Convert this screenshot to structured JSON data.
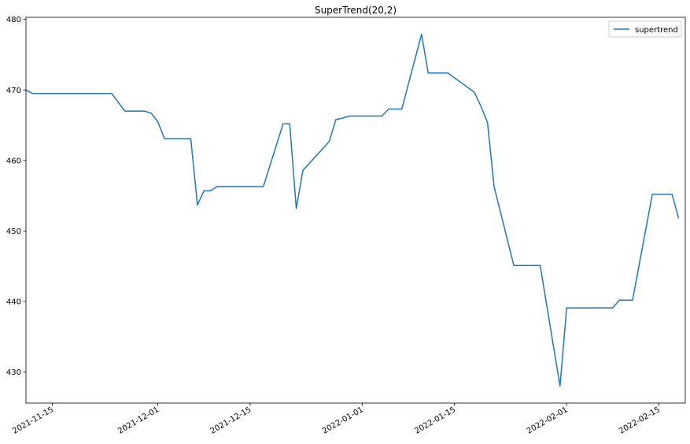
{
  "chart_data": {
    "type": "line",
    "title": "SuperTrend(20,2)",
    "xlabel": "",
    "ylabel": "",
    "x_ticks": [
      "2021-11-15",
      "2021-12-01",
      "2021-12-15",
      "2022-01-01",
      "2022-01-15",
      "2022-02-01",
      "2022-02-15"
    ],
    "y_ticks": [
      430,
      440,
      450,
      460,
      470,
      480
    ],
    "xlim": [
      "2021-11-11",
      "2022-02-19"
    ],
    "ylim": [
      425.6,
      480.3
    ],
    "grid": false,
    "legend": "top-right",
    "series": [
      {
        "name": "supertrend",
        "color": "#1f77b4",
        "x": [
          "2021-11-11",
          "2021-11-12",
          "2021-11-15",
          "2021-11-16",
          "2021-11-17",
          "2021-11-18",
          "2021-11-19",
          "2021-11-22",
          "2021-11-23",
          "2021-11-24",
          "2021-11-26",
          "2021-11-29",
          "2021-11-30",
          "2021-12-01",
          "2021-12-02",
          "2021-12-03",
          "2021-12-06",
          "2021-12-07",
          "2021-12-08",
          "2021-12-09",
          "2021-12-10",
          "2021-12-13",
          "2021-12-14",
          "2021-12-15",
          "2021-12-16",
          "2021-12-17",
          "2021-12-20",
          "2021-12-21",
          "2021-12-22",
          "2021-12-23",
          "2021-12-27",
          "2021-12-28",
          "2021-12-29",
          "2021-12-30",
          "2021-12-31",
          "2022-01-03",
          "2022-01-04",
          "2022-01-05",
          "2022-01-06",
          "2022-01-07",
          "2022-01-10",
          "2022-01-11",
          "2022-01-12",
          "2022-01-13",
          "2022-01-14",
          "2022-01-18",
          "2022-01-19",
          "2022-01-20",
          "2022-01-21",
          "2022-01-24",
          "2022-01-25",
          "2022-01-26",
          "2022-01-27",
          "2022-01-28",
          "2022-01-31",
          "2022-02-01",
          "2022-02-02",
          "2022-02-03",
          "2022-02-04",
          "2022-02-07",
          "2022-02-08",
          "2022-02-09",
          "2022-02-10",
          "2022-02-11",
          "2022-02-14",
          "2022-02-15",
          "2022-02-16",
          "2022-02-17",
          "2022-02-18"
        ],
        "y": [
          470.0,
          469.5,
          469.5,
          469.5,
          469.5,
          469.5,
          469.5,
          469.5,
          469.5,
          469.5,
          467.0,
          467.0,
          466.7,
          465.5,
          463.1,
          463.1,
          463.1,
          453.7,
          455.7,
          455.7,
          456.3,
          456.3,
          456.3,
          456.3,
          456.3,
          456.3,
          465.2,
          465.2,
          453.2,
          458.6,
          462.7,
          465.8,
          466.0,
          466.3,
          466.3,
          466.3,
          466.3,
          467.3,
          467.3,
          467.3,
          477.9,
          472.4,
          472.4,
          472.4,
          472.4,
          469.7,
          467.7,
          465.4,
          456.3,
          445.1,
          445.1,
          445.1,
          445.1,
          445.1,
          428.0,
          439.1,
          439.1,
          439.1,
          439.1,
          439.1,
          439.1,
          440.2,
          440.2,
          440.2,
          455.2,
          455.2,
          455.2,
          455.2,
          451.8
        ]
      }
    ]
  }
}
